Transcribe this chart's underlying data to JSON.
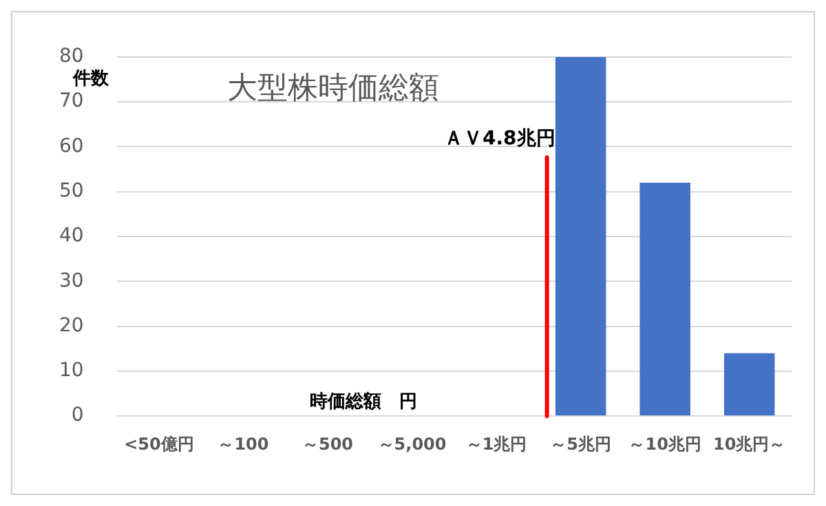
{
  "chart_data": {
    "type": "bar",
    "title": "大型株時価総額",
    "xlabel": "時価総額　円",
    "ylabel": "件数",
    "categories": [
      "<50億円",
      "～100",
      "～500",
      "～5,000",
      "～1兆円",
      "～5兆円",
      "～10兆円",
      "10兆円～"
    ],
    "values": [
      0,
      0,
      0,
      0,
      0,
      80,
      52,
      14
    ],
    "color": "#4472c4",
    "ylim": [
      0,
      80
    ],
    "yticks": [
      0,
      10,
      20,
      30,
      40,
      50,
      60,
      70,
      80
    ],
    "grid": "y",
    "ref_lines": [
      {
        "axis": "x",
        "value": "～5兆円",
        "label": "ＡＶ4.8兆円",
        "color": "#ff0000"
      }
    ]
  }
}
